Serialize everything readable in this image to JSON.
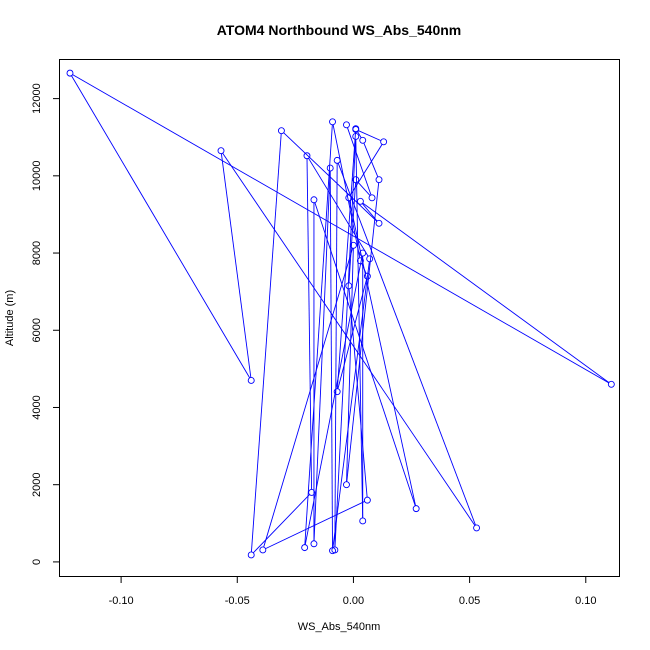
{
  "chart_data": {
    "type": "line",
    "title": "ATOM4 Northbound WS_Abs_540nm",
    "xlabel": "WS_Abs_540nm",
    "ylabel": "Altitude (m)",
    "xlim": [
      -0.1263,
      0.1143
    ],
    "ylim": [
      -365,
      13000
    ],
    "xticks": [
      -0.1,
      -0.05,
      0.0,
      0.05,
      0.1
    ],
    "xtick_labels": [
      "-0.10",
      "-0.05",
      "0.00",
      "0.05",
      "0.10"
    ],
    "yticks": [
      0,
      2000,
      4000,
      6000,
      8000,
      10000,
      12000
    ],
    "ytick_labels": [
      "0",
      "2000",
      "4000",
      "6000",
      "8000",
      "10000",
      "12000"
    ],
    "grid": false,
    "series": [
      {
        "color": "#0000ff",
        "marker": "open-circle",
        "points": [
          {
            "x": 0.001,
            "y": 11200
          },
          {
            "x": 0.013,
            "y": 10880
          },
          {
            "x": -0.002,
            "y": 9430
          },
          {
            "x": 0.027,
            "y": 1380
          },
          {
            "x": -0.017,
            "y": 9380
          },
          {
            "x": -0.017,
            "y": 470
          },
          {
            "x": -0.01,
            "y": 10200
          },
          {
            "x": -0.009,
            "y": 290
          },
          {
            "x": 0.007,
            "y": 7850
          },
          {
            "x": -0.02,
            "y": 10520
          },
          {
            "x": -0.018,
            "y": 1800
          },
          {
            "x": -0.044,
            "y": 180
          },
          {
            "x": -0.031,
            "y": 11170
          },
          {
            "x": 0.011,
            "y": 8770
          },
          {
            "x": 0.003,
            "y": 9340
          },
          {
            "x": 0.111,
            "y": 4600
          },
          {
            "x": -0.122,
            "y": 12660
          },
          {
            "x": -0.044,
            "y": 4700
          },
          {
            "x": -0.057,
            "y": 10650
          },
          {
            "x": 0.053,
            "y": 880
          },
          {
            "x": -0.007,
            "y": 10400
          },
          {
            "x": -0.008,
            "y": 310
          },
          {
            "x": 0.001,
            "y": 11020
          },
          {
            "x": 0.004,
            "y": 1060
          },
          {
            "x": 0.004,
            "y": 8000
          },
          {
            "x": -0.021,
            "y": 370
          },
          {
            "x": -0.009,
            "y": 11400
          },
          {
            "x": 0.003,
            "y": 7800
          },
          {
            "x": 0.006,
            "y": 7400
          },
          {
            "x": -0.007,
            "y": 4410
          },
          {
            "x": 0.001,
            "y": 11220
          },
          {
            "x": 0.004,
            "y": 10920
          },
          {
            "x": 0.011,
            "y": 9900
          },
          {
            "x": -0.003,
            "y": 2000
          },
          {
            "x": 0.0,
            "y": 8200
          },
          {
            "x": -0.039,
            "y": 310
          },
          {
            "x": 0.006,
            "y": 1600
          },
          {
            "x": -0.002,
            "y": 7150
          },
          {
            "x": 0.001,
            "y": 9900
          },
          {
            "x": 0.008,
            "y": 9430
          },
          {
            "x": -0.003,
            "y": 11320
          }
        ]
      }
    ]
  }
}
